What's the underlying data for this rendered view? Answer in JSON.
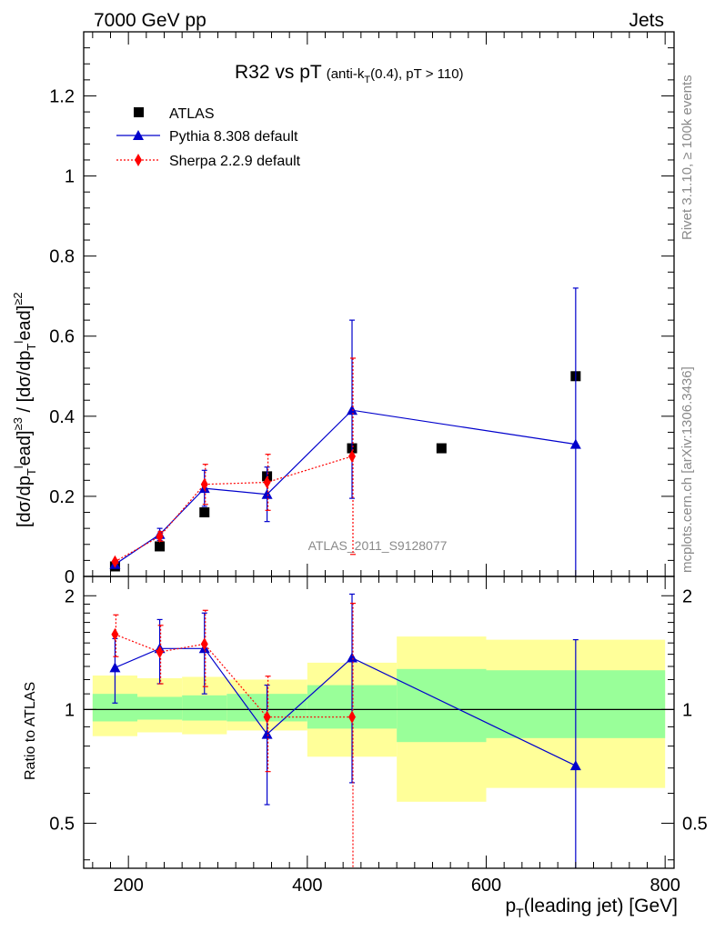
{
  "header": {
    "left": "7000 GeV pp",
    "right": "Jets"
  },
  "side_text": {
    "rivet": "Rivet 3.1.10, ≥ 100k events",
    "mcplots": "mcplots.cern.ch [arXiv:1306.3436]"
  },
  "chart_data": [
    {
      "panel": "main",
      "type": "scatter",
      "title_main": "R32 vs pT",
      "title_sub": "(anti-k",
      "title_sub_sub": "T",
      "title_sub_tail": "(0.4), pT > 110)",
      "ylabel": "[dσ/dp_T^lead]^≥3 / [dσ/dp_T^lead]^≥2",
      "ylabel_parts": [
        "[dσ/dp",
        "T",
        "l",
        "ead]",
        "≥3",
        " / [dσ/dp",
        "T",
        "l",
        "ead]",
        "≥2"
      ],
      "watermark": "ATLAS_2011_S9128077",
      "xlim": [
        150,
        810
      ],
      "ylim": [
        0,
        1.36
      ],
      "x_ticks": [
        200,
        400,
        600,
        800
      ],
      "y_ticks": [
        0,
        0.2,
        0.4,
        0.6,
        0.8,
        1,
        1.2
      ],
      "y_tick_labels": [
        "0",
        "0.2",
        "0.4",
        "0.6",
        "0.8",
        "1",
        "1.2"
      ],
      "legend_position": "top-left",
      "series": [
        {
          "name": "ATLAS",
          "color": "#000000",
          "marker": "square",
          "x": [
            185,
            235,
            285,
            355,
            450,
            550,
            700
          ],
          "y": [
            0.025,
            0.075,
            0.16,
            0.25,
            0.32,
            0.32,
            0.5
          ]
        },
        {
          "name": "Pythia 8.308 default",
          "color": "#0000cc",
          "marker": "triangle",
          "line": "solid",
          "x": [
            185,
            235,
            285,
            355,
            450,
            700
          ],
          "y": [
            0.03,
            0.105,
            0.22,
            0.205,
            0.415,
            0.33
          ],
          "err_lo": [
            0.004,
            0.015,
            0.045,
            0.068,
            0.22,
            0.33
          ],
          "err_hi": [
            0.004,
            0.015,
            0.045,
            0.068,
            0.225,
            0.39
          ]
        },
        {
          "name": "Sherpa 2.2.9 default",
          "color": "#ff0000",
          "marker": "diamond",
          "line": "dotted",
          "x": [
            185,
            235,
            285,
            355,
            450
          ],
          "y": [
            0.037,
            0.1,
            0.23,
            0.235,
            0.3
          ],
          "err_lo": [
            0.004,
            0.012,
            0.05,
            0.07,
            0.245
          ],
          "err_hi": [
            0.004,
            0.012,
            0.05,
            0.07,
            0.245
          ]
        }
      ]
    },
    {
      "panel": "ratio",
      "type": "line",
      "ylabel": "Ratio to ATLAS",
      "xlabel_main": "p",
      "xlabel_sub": "T",
      "xlabel_tail": "(leading jet) [GeV]",
      "xlim": [
        150,
        810
      ],
      "ylim": [
        0.38,
        2.25
      ],
      "log_y": true,
      "x_ticks": [
        200,
        400,
        600,
        800
      ],
      "x_tick_labels": [
        "200",
        "400",
        "600",
        "800"
      ],
      "y_ticks": [
        0.5,
        1,
        2
      ],
      "y_tick_labels": [
        "0.5",
        "1",
        "2"
      ],
      "bands": {
        "edges": [
          160,
          210,
          260,
          310,
          400,
          500,
          600,
          800
        ],
        "green_lo": [
          0.93,
          0.94,
          0.935,
          0.93,
          0.89,
          0.82,
          0.84
        ],
        "green_hi": [
          1.1,
          1.08,
          1.09,
          1.1,
          1.16,
          1.28,
          1.27
        ],
        "yellow_lo": [
          0.85,
          0.87,
          0.86,
          0.88,
          0.75,
          0.57,
          0.62
        ],
        "yellow_hi": [
          1.23,
          1.21,
          1.22,
          1.2,
          1.33,
          1.56,
          1.53
        ]
      },
      "series": [
        {
          "name": "Pythia 8.308 default",
          "color": "#0000cc",
          "marker": "triangle",
          "x": [
            185,
            235,
            285,
            355,
            450,
            700
          ],
          "y": [
            1.29,
            1.45,
            1.45,
            0.86,
            1.37,
            0.71
          ],
          "err_lo": [
            0.25,
            0.28,
            0.35,
            0.3,
            0.73,
            0.71
          ],
          "err_hi": [
            0.25,
            0.28,
            0.35,
            0.3,
            0.65,
            0.82
          ]
        },
        {
          "name": "Sherpa 2.2.9 default",
          "color": "#ff0000",
          "marker": "diamond",
          "x": [
            185,
            235,
            285,
            355,
            450
          ],
          "y": [
            1.58,
            1.42,
            1.49,
            0.955,
            0.955
          ],
          "err_lo": [
            0.2,
            0.25,
            0.34,
            0.27,
            0.955
          ],
          "err_hi": [
            0.2,
            0.25,
            0.34,
            0.27,
            0.955
          ]
        }
      ]
    }
  ]
}
